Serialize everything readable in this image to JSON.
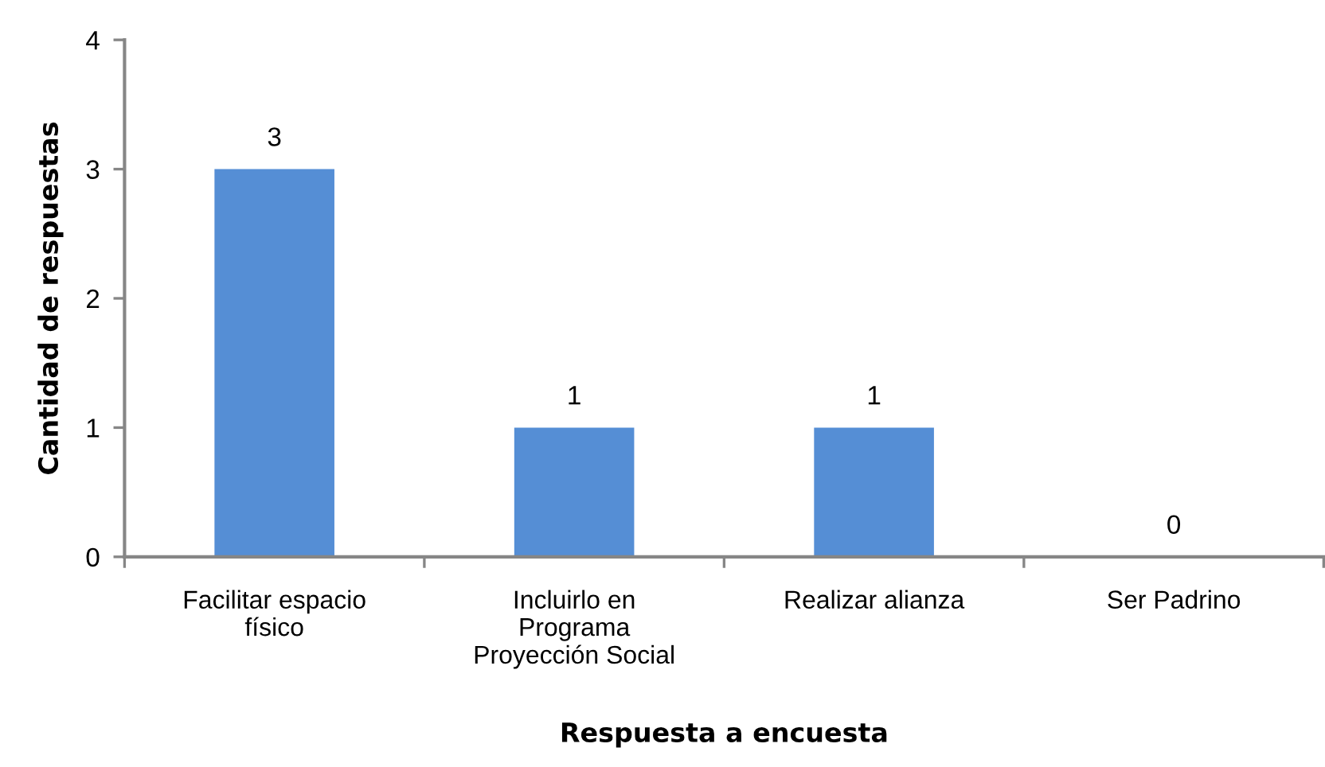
{
  "chart_data": {
    "type": "bar",
    "xlabel": "Respuesta a encuesta",
    "ylabel": "Cantidad de respuestas",
    "categories": [
      "Facilitar espacio\nfísico",
      "Incluirlo en\nPrograma\nProyección Social",
      "Realizar alianza",
      "Ser Padrino"
    ],
    "values": [
      3,
      1,
      1,
      0
    ],
    "color": "#558ed5",
    "ylim": [
      0,
      4
    ],
    "yticks": [
      0,
      1,
      2,
      3,
      4
    ],
    "grid": false,
    "data_labels": true,
    "legend": false
  }
}
